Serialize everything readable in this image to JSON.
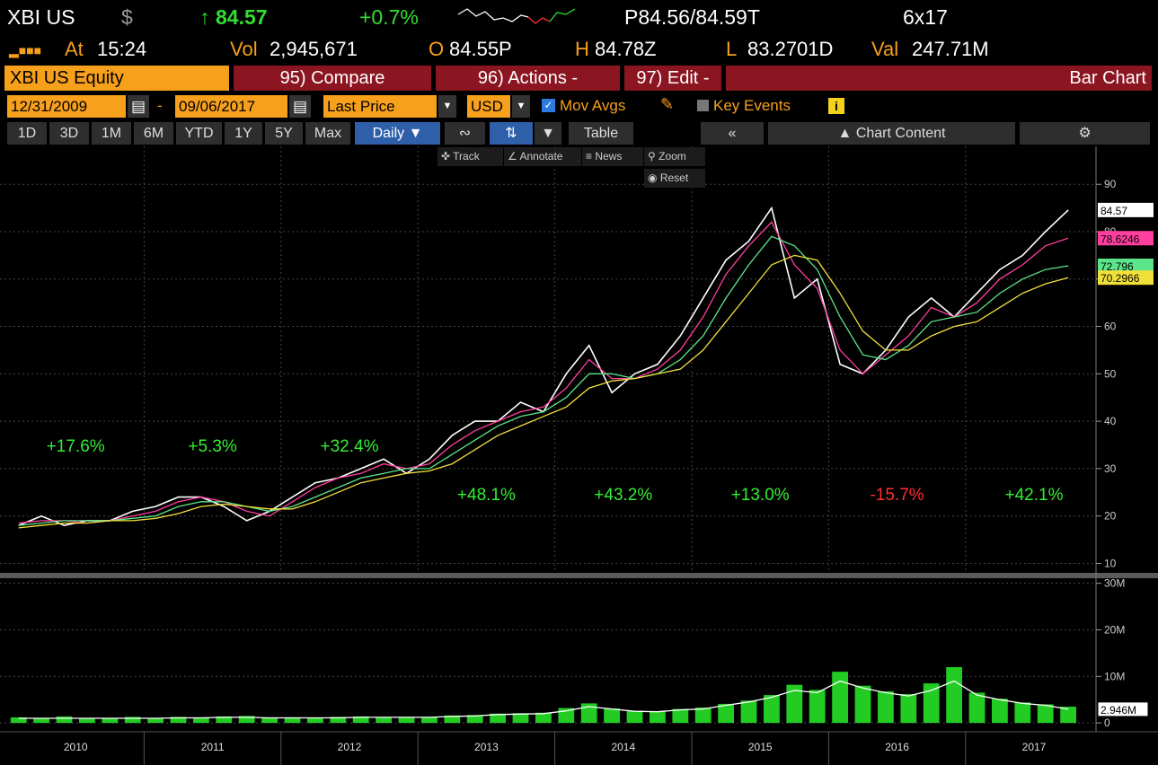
{
  "header": {
    "ticker": "XBI US",
    "currency": "$",
    "last": "84.57",
    "change": "+0.7%",
    "bid_ask": "P84.56/84.59T",
    "size": "6x17",
    "time_label": "At",
    "time": "15:24",
    "vol_label": "Vol",
    "vol": "2,945,671",
    "open_label": "O",
    "open": "84.55P",
    "high_label": "H",
    "high": "84.78Z",
    "low_label": "L",
    "low": "83.2701D",
    "val_label": "Val",
    "val": "247.71M"
  },
  "toolbar": {
    "security": "XBI US Equity",
    "compare": "95) Compare",
    "actions": "96) Actions",
    "edit": "97) Edit",
    "chart_type": "Bar Chart",
    "start_date": "12/31/2009",
    "end_date": "09/06/2017",
    "field": "Last Price",
    "currency": "USD",
    "mov_avgs": "Mov Avgs",
    "key_events": "Key Events",
    "periods": [
      "1D",
      "3D",
      "1M",
      "6M",
      "YTD",
      "1Y",
      "5Y",
      "Max"
    ],
    "frequency": "Daily",
    "table": "Table",
    "chart_content": "Chart Content",
    "track": "Track",
    "annotate": "Annotate",
    "news": "News",
    "zoom": "Zoom",
    "reset": "Reset"
  },
  "chart_data": [
    {
      "type": "line",
      "ylim": [
        8,
        98
      ],
      "yticks": [
        10,
        20,
        30,
        40,
        50,
        60,
        70,
        80,
        90
      ],
      "grid": true,
      "series": [
        {
          "color": "#ffffff",
          "values": [
            18,
            20,
            18,
            19,
            19,
            21,
            22,
            24,
            24,
            22,
            19,
            21,
            24,
            27,
            28,
            30,
            32,
            29,
            32,
            37,
            40,
            40,
            44,
            42,
            50,
            56,
            46,
            50,
            52,
            58,
            66,
            74,
            78,
            85,
            66,
            70,
            52,
            50,
            55,
            62,
            66,
            62,
            67,
            72,
            75,
            80,
            84.57
          ]
        },
        {
          "color": "#ff3fa0",
          "values": [
            18.5,
            19,
            19,
            18.5,
            19,
            20,
            21,
            23,
            24,
            23,
            21,
            20,
            23,
            26,
            28,
            29,
            31,
            30,
            31,
            35,
            38,
            40,
            42,
            43,
            47,
            53,
            49,
            49,
            51,
            55,
            62,
            71,
            77,
            82,
            73,
            68,
            55,
            50,
            54,
            58,
            64,
            62,
            65,
            70,
            73,
            77,
            78.6246
          ]
        },
        {
          "color": "#5ce68a",
          "values": [
            18,
            18.5,
            19,
            19,
            19,
            19.5,
            20,
            22,
            23,
            23,
            22,
            21,
            22,
            24,
            26,
            28,
            29,
            30,
            30,
            33,
            36,
            39,
            41,
            42,
            45,
            50,
            50,
            49,
            50,
            53,
            58,
            66,
            73,
            79,
            77,
            72,
            62,
            54,
            53,
            56,
            61,
            62,
            63,
            67,
            70,
            72,
            72.796
          ]
        },
        {
          "color": "#f2e03a",
          "values": [
            17.5,
            18,
            18.5,
            18.5,
            19,
            19,
            19.5,
            20.5,
            22,
            22.5,
            22,
            21.5,
            21.5,
            23,
            25,
            27,
            28,
            29,
            29.5,
            31,
            34,
            37,
            39,
            41,
            43,
            47,
            48.5,
            49,
            50,
            51,
            55,
            61,
            67,
            73,
            75,
            74,
            67,
            59,
            55,
            55,
            58,
            60,
            61,
            64,
            67,
            69,
            70.2966
          ]
        }
      ],
      "annotations": [
        {
          "text": "+17.6%",
          "color": "#33ee33"
        },
        {
          "text": "+5.3%",
          "color": "#33ee33"
        },
        {
          "text": "+32.4%",
          "color": "#33ee33"
        },
        {
          "text": "+48.1%",
          "color": "#33ee33"
        },
        {
          "text": "+43.2%",
          "color": "#33ee33"
        },
        {
          "text": "+13.0%",
          "color": "#33ee33"
        },
        {
          "text": "-15.7%",
          "color": "#ff3030"
        },
        {
          "text": "+42.1%",
          "color": "#33ee33"
        }
      ]
    },
    {
      "type": "bar",
      "categories": [
        "2010",
        null,
        null,
        null,
        null,
        null,
        "2011",
        null,
        null,
        null,
        null,
        null,
        "2012",
        null,
        null,
        null,
        null,
        null,
        "2013",
        null,
        null,
        null,
        null,
        null,
        "2014",
        null,
        null,
        null,
        null,
        null,
        "2015",
        null,
        null,
        null,
        null,
        null,
        "2016",
        null,
        null,
        null,
        null,
        null,
        "2017",
        null,
        null,
        null,
        null
      ],
      "ylim": [
        -1900000,
        30900000
      ],
      "yticks": [
        0,
        {
          "value": 10000000,
          "label": "10M"
        },
        {
          "value": 20000000,
          "label": "20M"
        },
        {
          "value": 30000000,
          "label": "30M"
        }
      ],
      "series": [
        {
          "color": "#22cc22",
          "values": [
            1200000,
            1000000,
            1400000,
            900000,
            1100000,
            1300000,
            1100000,
            1300000,
            1200000,
            1400000,
            1500000,
            1100000,
            1200000,
            1100000,
            1300000,
            1400000,
            1200000,
            1300000,
            1300000,
            1600000,
            1700000,
            2000000,
            2100000,
            2200000,
            3200000,
            4200000,
            3100000,
            2600000,
            2500000,
            3000000,
            3300000,
            4100000,
            4800000,
            6000000,
            8200000,
            7100000,
            11000000,
            8000000,
            6800000,
            6200000,
            8500000,
            12000000,
            6500000,
            5200000,
            4400000,
            4000000,
            3500000
          ]
        },
        {
          "color": "#ffffff",
          "values": [
            1000000,
            1000000,
            1000000,
            1000000,
            1000000,
            1000000,
            1000000,
            1100000,
            1100000,
            1200000,
            1200000,
            1100000,
            1100000,
            1100000,
            1100000,
            1200000,
            1200000,
            1200000,
            1200000,
            1400000,
            1500000,
            1800000,
            1900000,
            2000000,
            2600000,
            3500000,
            3000000,
            2500000,
            2400000,
            2800000,
            3000000,
            3800000,
            4500000,
            5500000,
            7000000,
            6500000,
            9000000,
            7500000,
            6500000,
            5800000,
            7000000,
            9000000,
            6000000,
            5000000,
            4200000,
            3800000,
            2946000
          ],
          "value_labels": [
            null,
            null,
            null,
            null,
            null,
            null,
            null,
            null,
            null,
            null,
            null,
            null,
            null,
            null,
            null,
            null,
            null,
            null,
            null,
            null,
            null,
            null,
            null,
            null,
            null,
            null,
            null,
            null,
            null,
            null,
            null,
            null,
            null,
            null,
            null,
            null,
            null,
            null,
            null,
            null,
            null,
            null,
            null,
            null,
            null,
            null,
            "2.946M"
          ]
        }
      ]
    }
  ]
}
